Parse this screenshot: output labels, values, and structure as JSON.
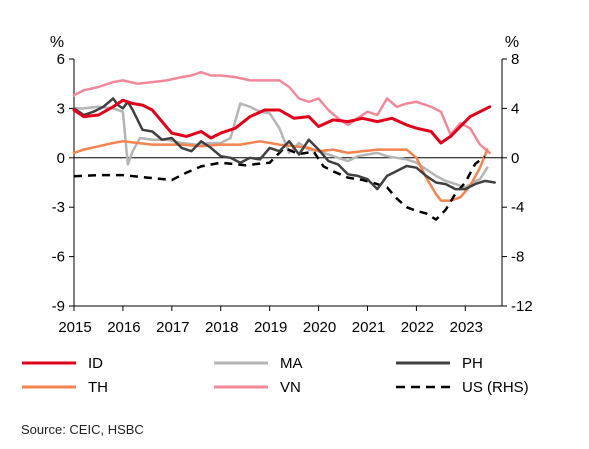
{
  "chart_data": {
    "type": "line",
    "left_axis": {
      "unit": "%",
      "ylim": [
        -9,
        6
      ],
      "ticks": [
        "6",
        "3",
        "0",
        "-3",
        "-6",
        "-9"
      ]
    },
    "right_axis": {
      "unit": "%",
      "ylim": [
        -12,
        8
      ],
      "ticks": [
        "8",
        "4",
        "0",
        "-4",
        "-8",
        "-12"
      ]
    },
    "x_axis": {
      "xlim": [
        2015.0,
        2023.75
      ],
      "ticks": [
        "2015",
        "2016",
        "2017",
        "2018",
        "2019",
        "2020",
        "2021",
        "2022",
        "2023"
      ]
    },
    "grid": false,
    "legend": {
      "placement": "bottom",
      "columns": 3
    },
    "colors": {
      "ID": "#e0001b",
      "MA": "#b5b5b5",
      "PH": "#404040",
      "TH": "#f4834f",
      "VN": "#f3879a",
      "US (RHS)": "#000000"
    },
    "series": [
      {
        "name": "ID",
        "axis": "left",
        "style": "solid",
        "points": [
          [
            2015.0,
            2.9
          ],
          [
            2015.2,
            2.5
          ],
          [
            2015.5,
            2.6
          ],
          [
            2015.8,
            3.1
          ],
          [
            2016.0,
            3.5
          ],
          [
            2016.2,
            3.3
          ],
          [
            2016.4,
            3.2
          ],
          [
            2016.6,
            2.9
          ],
          [
            2016.8,
            2.2
          ],
          [
            2017.0,
            1.5
          ],
          [
            2017.3,
            1.3
          ],
          [
            2017.6,
            1.6
          ],
          [
            2017.8,
            1.2
          ],
          [
            2018.0,
            1.5
          ],
          [
            2018.3,
            1.8
          ],
          [
            2018.6,
            2.5
          ],
          [
            2018.9,
            2.9
          ],
          [
            2019.2,
            2.9
          ],
          [
            2019.5,
            2.4
          ],
          [
            2019.8,
            2.5
          ],
          [
            2020.0,
            1.9
          ],
          [
            2020.3,
            2.3
          ],
          [
            2020.6,
            2.2
          ],
          [
            2020.9,
            2.4
          ],
          [
            2021.2,
            2.2
          ],
          [
            2021.5,
            2.4
          ],
          [
            2021.8,
            2.0
          ],
          [
            2022.0,
            1.8
          ],
          [
            2022.3,
            1.6
          ],
          [
            2022.5,
            0.9
          ],
          [
            2022.7,
            1.3
          ],
          [
            2022.9,
            1.9
          ],
          [
            2023.1,
            2.5
          ],
          [
            2023.3,
            2.8
          ],
          [
            2023.5,
            3.1
          ]
        ]
      },
      {
        "name": "MA",
        "axis": "left",
        "style": "solid",
        "points": [
          [
            2015.0,
            3.0
          ],
          [
            2015.2,
            3.0
          ],
          [
            2015.5,
            3.1
          ],
          [
            2015.8,
            3.0
          ],
          [
            2016.0,
            2.8
          ],
          [
            2016.1,
            -0.4
          ],
          [
            2016.2,
            0.4
          ],
          [
            2016.35,
            1.2
          ],
          [
            2016.6,
            1.1
          ],
          [
            2016.9,
            1.1
          ],
          [
            2017.2,
            0.9
          ],
          [
            2017.5,
            0.8
          ],
          [
            2017.8,
            0.9
          ],
          [
            2018.0,
            0.9
          ],
          [
            2018.2,
            1.2
          ],
          [
            2018.4,
            3.3
          ],
          [
            2018.6,
            3.1
          ],
          [
            2018.8,
            2.8
          ],
          [
            2019.0,
            2.7
          ],
          [
            2019.2,
            1.8
          ],
          [
            2019.4,
            0.3
          ],
          [
            2019.6,
            0.9
          ],
          [
            2019.8,
            0.5
          ],
          [
            2020.0,
            0.4
          ],
          [
            2020.2,
            0.2
          ],
          [
            2020.4,
            0.0
          ],
          [
            2020.6,
            -0.2
          ],
          [
            2020.8,
            0.1
          ],
          [
            2021.0,
            0.2
          ],
          [
            2021.2,
            0.3
          ],
          [
            2021.4,
            0.1
          ],
          [
            2021.6,
            0.0
          ],
          [
            2021.8,
            -0.1
          ],
          [
            2022.0,
            -0.3
          ],
          [
            2022.2,
            -0.7
          ],
          [
            2022.4,
            -1.1
          ],
          [
            2022.6,
            -1.4
          ],
          [
            2022.8,
            -1.6
          ],
          [
            2023.0,
            -1.8
          ],
          [
            2023.15,
            -1.5
          ],
          [
            2023.3,
            -1.3
          ],
          [
            2023.45,
            -0.6
          ]
        ]
      },
      {
        "name": "PH",
        "axis": "left",
        "style": "solid",
        "points": [
          [
            2015.0,
            3.0
          ],
          [
            2015.2,
            2.6
          ],
          [
            2015.4,
            2.8
          ],
          [
            2015.6,
            3.1
          ],
          [
            2015.8,
            3.6
          ],
          [
            2015.9,
            3.2
          ],
          [
            2016.0,
            3.0
          ],
          [
            2016.1,
            3.4
          ],
          [
            2016.2,
            2.9
          ],
          [
            2016.4,
            1.7
          ],
          [
            2016.6,
            1.6
          ],
          [
            2016.8,
            1.1
          ],
          [
            2017.0,
            1.2
          ],
          [
            2017.2,
            0.6
          ],
          [
            2017.4,
            0.4
          ],
          [
            2017.6,
            1.0
          ],
          [
            2017.8,
            0.6
          ],
          [
            2018.0,
            0.1
          ],
          [
            2018.2,
            0.0
          ],
          [
            2018.4,
            -0.3
          ],
          [
            2018.6,
            0.0
          ],
          [
            2018.8,
            -0.1
          ],
          [
            2019.0,
            0.6
          ],
          [
            2019.2,
            0.4
          ],
          [
            2019.4,
            1.0
          ],
          [
            2019.6,
            0.2
          ],
          [
            2019.8,
            1.1
          ],
          [
            2020.0,
            0.5
          ],
          [
            2020.2,
            -0.2
          ],
          [
            2020.4,
            -0.4
          ],
          [
            2020.6,
            -1.0
          ],
          [
            2020.8,
            -1.1
          ],
          [
            2021.0,
            -1.3
          ],
          [
            2021.2,
            -1.9
          ],
          [
            2021.4,
            -1.1
          ],
          [
            2021.6,
            -0.8
          ],
          [
            2021.8,
            -0.5
          ],
          [
            2022.0,
            -0.6
          ],
          [
            2022.2,
            -1.1
          ],
          [
            2022.4,
            -1.5
          ],
          [
            2022.6,
            -1.6
          ],
          [
            2022.8,
            -1.9
          ],
          [
            2023.0,
            -1.9
          ],
          [
            2023.2,
            -1.6
          ],
          [
            2023.4,
            -1.4
          ],
          [
            2023.6,
            -1.5
          ]
        ]
      },
      {
        "name": "TH",
        "axis": "left",
        "style": "solid",
        "points": [
          [
            2015.0,
            0.3
          ],
          [
            2015.2,
            0.5
          ],
          [
            2015.5,
            0.7
          ],
          [
            2015.8,
            0.9
          ],
          [
            2016.0,
            1.0
          ],
          [
            2016.3,
            0.9
          ],
          [
            2016.6,
            0.8
          ],
          [
            2016.9,
            0.8
          ],
          [
            2017.2,
            0.8
          ],
          [
            2017.6,
            0.7
          ],
          [
            2018.0,
            0.8
          ],
          [
            2018.4,
            0.8
          ],
          [
            2018.8,
            1.0
          ],
          [
            2019.2,
            0.8
          ],
          [
            2019.5,
            0.7
          ],
          [
            2019.8,
            0.6
          ],
          [
            2020.0,
            0.4
          ],
          [
            2020.3,
            0.5
          ],
          [
            2020.6,
            0.3
          ],
          [
            2020.9,
            0.4
          ],
          [
            2021.2,
            0.5
          ],
          [
            2021.5,
            0.5
          ],
          [
            2021.8,
            0.5
          ],
          [
            2022.0,
            0.0
          ],
          [
            2022.2,
            -1.2
          ],
          [
            2022.4,
            -2.2
          ],
          [
            2022.5,
            -2.6
          ],
          [
            2022.7,
            -2.6
          ],
          [
            2022.9,
            -2.4
          ],
          [
            2023.1,
            -1.7
          ],
          [
            2023.3,
            -0.6
          ],
          [
            2023.45,
            0.5
          ]
        ]
      },
      {
        "name": "VN",
        "axis": "left",
        "style": "solid",
        "points": [
          [
            2015.0,
            3.8
          ],
          [
            2015.2,
            4.1
          ],
          [
            2015.5,
            4.3
          ],
          [
            2015.8,
            4.6
          ],
          [
            2016.0,
            4.7
          ],
          [
            2016.3,
            4.5
          ],
          [
            2016.6,
            4.6
          ],
          [
            2016.9,
            4.7
          ],
          [
            2017.2,
            4.9
          ],
          [
            2017.4,
            5.0
          ],
          [
            2017.6,
            5.2
          ],
          [
            2017.8,
            5.0
          ],
          [
            2018.0,
            5.0
          ],
          [
            2018.3,
            4.9
          ],
          [
            2018.6,
            4.7
          ],
          [
            2018.9,
            4.7
          ],
          [
            2019.2,
            4.7
          ],
          [
            2019.4,
            4.3
          ],
          [
            2019.6,
            3.6
          ],
          [
            2019.8,
            3.4
          ],
          [
            2020.0,
            3.6
          ],
          [
            2020.2,
            2.9
          ],
          [
            2020.4,
            2.4
          ],
          [
            2020.6,
            2.0
          ],
          [
            2020.8,
            2.4
          ],
          [
            2021.0,
            2.8
          ],
          [
            2021.2,
            2.6
          ],
          [
            2021.4,
            3.6
          ],
          [
            2021.6,
            3.1
          ],
          [
            2021.8,
            3.3
          ],
          [
            2022.0,
            3.4
          ],
          [
            2022.3,
            3.1
          ],
          [
            2022.5,
            2.8
          ],
          [
            2022.7,
            1.4
          ],
          [
            2022.9,
            2.1
          ],
          [
            2023.1,
            1.8
          ],
          [
            2023.3,
            0.8
          ],
          [
            2023.5,
            0.3
          ]
        ]
      },
      {
        "name": "US (RHS)",
        "axis": "right",
        "style": "dashed",
        "points": [
          [
            2015.0,
            -1.5
          ],
          [
            2015.5,
            -1.4
          ],
          [
            2016.0,
            -1.4
          ],
          [
            2016.5,
            -1.6
          ],
          [
            2017.0,
            -1.8
          ],
          [
            2017.3,
            -1.2
          ],
          [
            2017.6,
            -0.7
          ],
          [
            2018.0,
            -0.4
          ],
          [
            2018.5,
            -0.6
          ],
          [
            2019.0,
            -0.4
          ],
          [
            2019.3,
            0.8
          ],
          [
            2019.6,
            0.3
          ],
          [
            2019.9,
            0.5
          ],
          [
            2020.1,
            -0.7
          ],
          [
            2020.3,
            -1.1
          ],
          [
            2020.6,
            -1.6
          ],
          [
            2020.9,
            -1.8
          ],
          [
            2021.1,
            -2.0
          ],
          [
            2021.4,
            -2.4
          ],
          [
            2021.6,
            -3.3
          ],
          [
            2021.8,
            -4.0
          ],
          [
            2022.0,
            -4.3
          ],
          [
            2022.2,
            -4.5
          ],
          [
            2022.4,
            -5.0
          ],
          [
            2022.6,
            -4.2
          ],
          [
            2022.8,
            -2.9
          ],
          [
            2023.0,
            -2.0
          ],
          [
            2023.2,
            -0.5
          ],
          [
            2023.4,
            0.1
          ]
        ]
      }
    ]
  },
  "source": "Source: CEIC, HSBC"
}
